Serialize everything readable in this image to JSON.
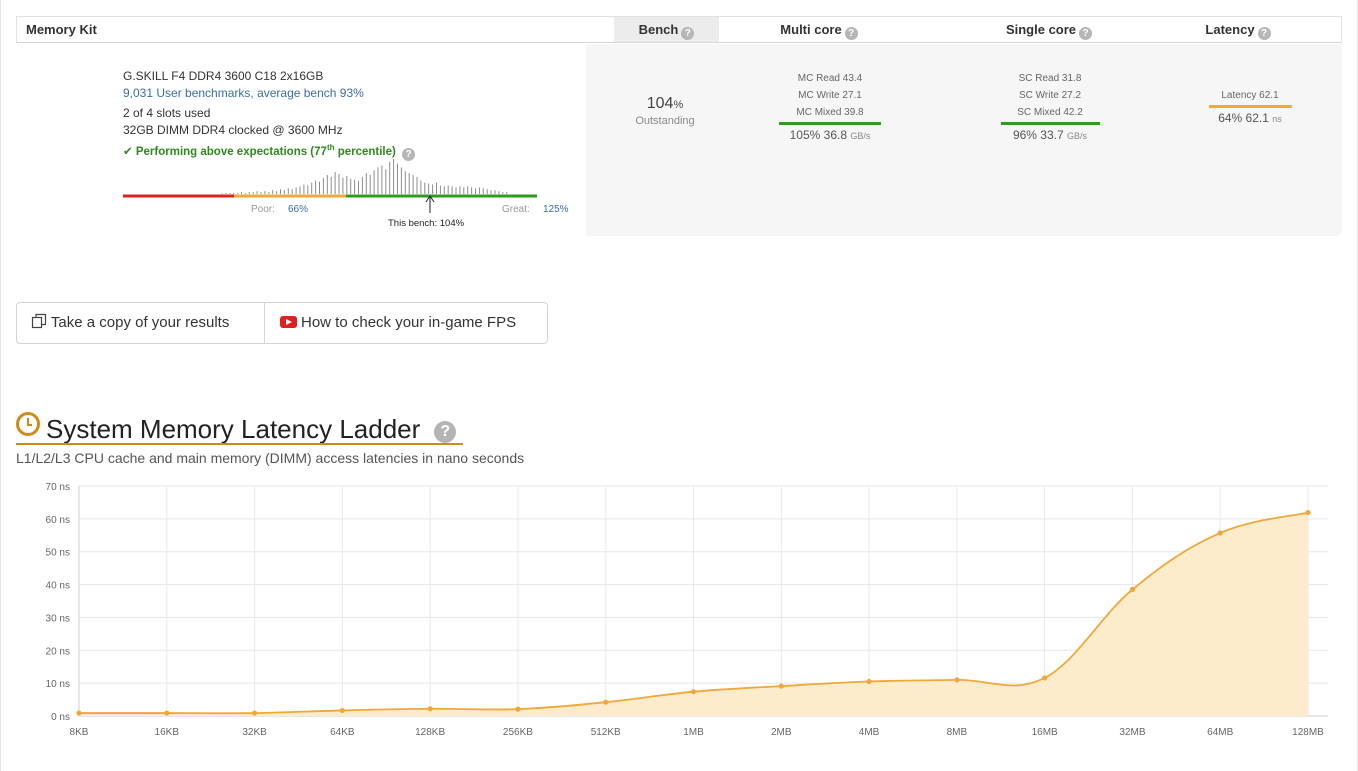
{
  "header": {
    "memory_kit": "Memory Kit",
    "bench": "Bench",
    "multi_core": "Multi core",
    "single_core": "Single core",
    "latency": "Latency",
    "help_glyph": "?"
  },
  "kit": {
    "name": "G.SKILL F4 DDR4 3600 C18 2x16GB",
    "benchmarks_link": "9,031 User benchmarks, average bench 93%",
    "slots": "2 of 4 slots used",
    "config": "32GB DIMM DDR4 clocked @ 3600 MHz",
    "performance_prefix": "Performing above expectations (77",
    "performance_sup": "th",
    "performance_suffix": " percentile)",
    "poor_label": "Poor:",
    "poor_value": "66%",
    "great_label": "Great:",
    "great_value": "125%",
    "this_bench": "This bench: 104%"
  },
  "bench": {
    "value": "104",
    "unit": "%",
    "rating": "Outstanding"
  },
  "multi_core": {
    "read": "MC Read 43.4",
    "write": "MC Write 27.1",
    "mixed": "MC Mixed 39.8",
    "summary": "105% 36.8",
    "unit": "GB/s",
    "bar_color": "#2f9a1e"
  },
  "single_core": {
    "read": "SC Read 31.8",
    "write": "SC Write 27.2",
    "mixed": "SC Mixed 42.2",
    "summary": "96% 33.7",
    "unit": "GB/s",
    "bar_color": "#2f9a1e"
  },
  "latency": {
    "label": "Latency 62.1",
    "summary": "64% 62.1",
    "unit": "ns",
    "bar_color": "#f0a83a"
  },
  "buttons": {
    "copy": "Take a copy of your results",
    "fps": "How to check your in-game FPS"
  },
  "ladder": {
    "title": "System Memory Latency Ladder",
    "subtitle": "L1/L2/L3 CPU cache and main memory (DIMM) access latencies in nano seconds"
  },
  "colors": {
    "accent": "#d18a1a",
    "line": "#f0a83a",
    "fill": "#fdeccc",
    "green": "#2f9a1e",
    "red": "#d9261c",
    "orange": "#f0a83a",
    "link": "#3b6ea5"
  },
  "chart_data": {
    "type": "area",
    "title": "",
    "xlabel": "",
    "ylabel": "",
    "categories": [
      "8KB",
      "16KB",
      "32KB",
      "64KB",
      "128KB",
      "256KB",
      "512KB",
      "1MB",
      "2MB",
      "4MB",
      "8MB",
      "16MB",
      "32MB",
      "64MB",
      "128MB"
    ],
    "values": [
      0.9,
      0.9,
      0.9,
      1.7,
      2.2,
      2.1,
      4.2,
      7.4,
      9.1,
      10.5,
      11.0,
      11.6,
      38.5,
      55.7,
      61.9
    ],
    "ylim": [
      0,
      70
    ],
    "yticks": [
      "0 ns",
      "10 ns",
      "20 ns",
      "30 ns",
      "40 ns",
      "50 ns",
      "60 ns",
      "70 ns"
    ],
    "grid": true
  }
}
